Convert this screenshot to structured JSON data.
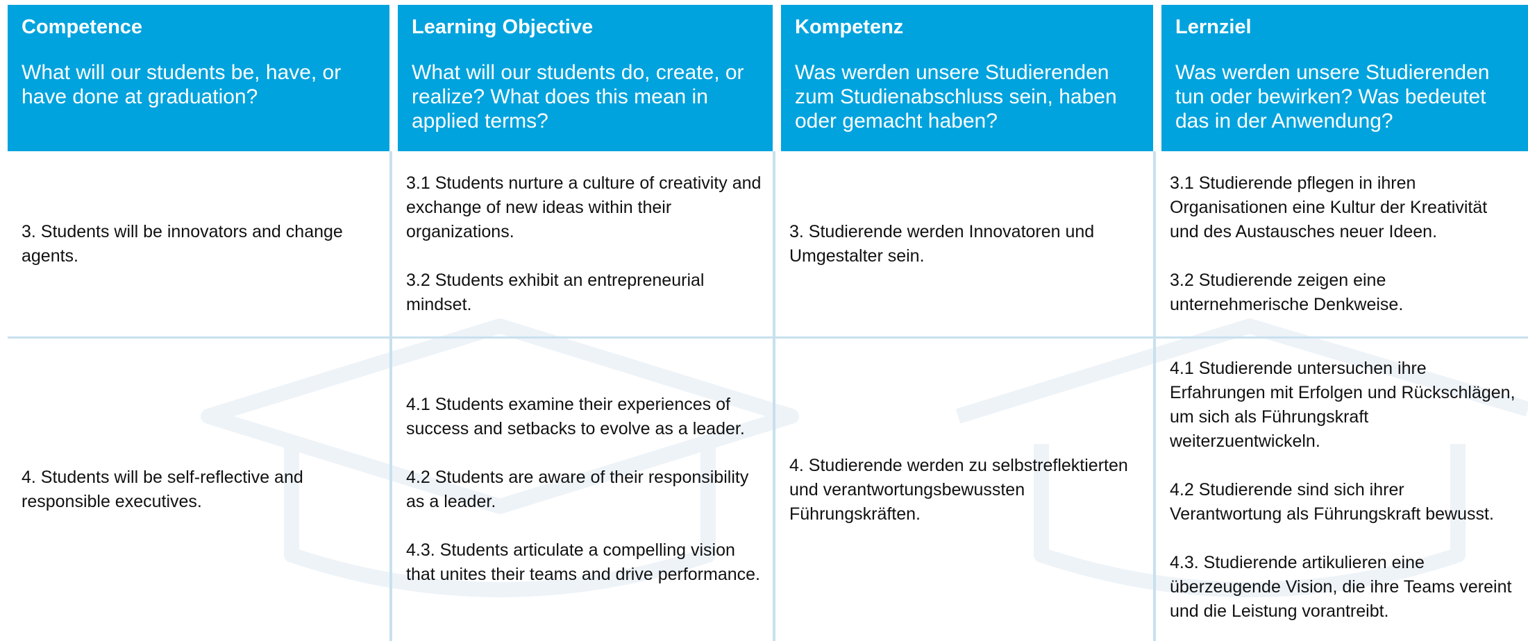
{
  "header": {
    "columns": [
      {
        "title": "Competence",
        "question": "What will our students be, have, or have done at graduation?"
      },
      {
        "title": "Learning Objective",
        "question": "What will our students do, create, or realize? What does this mean in applied terms?"
      },
      {
        "title": "Kompetenz",
        "question": "Was werden unsere Studierenden zum Studienabschluss sein, haben oder gemacht haben?"
      },
      {
        "title": "Lernziel",
        "question": "Was werden unsere Studierenden tun oder bewirken? Was bedeutet das in der Anwendung?"
      }
    ]
  },
  "rows": [
    [
      [
        "3. Students will be innovators and change agents."
      ],
      [
        "3.1 Students nurture a culture of creativity and exchange of new ideas within their organizations.",
        "3.2 Students exhibit an entrepreneurial mindset."
      ],
      [
        "3. Studierende werden Innovatoren und Umgestalter sein."
      ],
      [
        "3.1 Studierende pflegen in ihren Organisationen eine Kultur der Kreativität und des Austausches neuer Ideen.",
        "3.2  Studierende zeigen eine unternehmerische Denkweise."
      ]
    ],
    [
      [
        "4. Students will be self-reflective and responsible executives."
      ],
      [
        "4.1 Students examine their experiences of success and setbacks to evolve as a leader.",
        "4.2 Students are aware of their responsibility as a leader.",
        "4.3. Students articulate a compelling vision that unites their teams and drive performance."
      ],
      [
        "4. Studierende werden zu selbstreflektierten und verantwortungsbewussten Führungskräften."
      ],
      [
        "4.1 Studierende untersuchen ihre Erfahrungen mit Erfolgen und Rückschlägen, um sich als Führungskraft weiterzuentwickeln.",
        "4.2 Studierende sind sich ihrer Verantwortung als Führungskraft bewusst.",
        "4.3. Studierende artikulieren eine überzeugende Vision, die ihre Teams vereint und die Leistung vorantreibt."
      ]
    ]
  ]
}
